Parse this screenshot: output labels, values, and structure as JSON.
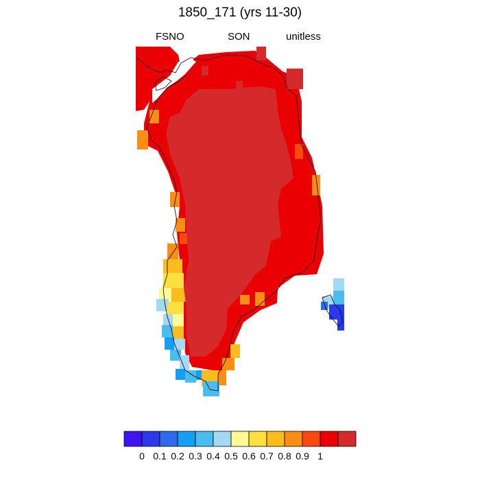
{
  "header": {
    "title": "1850_171 (yrs 11-30)",
    "variable": "FSNO",
    "season": "SON",
    "units": "unitless"
  },
  "colorbar": {
    "colors": [
      "#3e14f2",
      "#2a39e9",
      "#2e6bea",
      "#159ef5",
      "#4bbcef",
      "#a3d9f3",
      "#fefb96",
      "#fde040",
      "#fbbd1d",
      "#f98e14",
      "#f9490d",
      "#ea0003",
      "#d42a2b"
    ],
    "tick_labels": [
      "0",
      "0.1",
      "0.2",
      "0.3",
      "0.4",
      "0.5",
      "0.6",
      "0.7",
      "0.8",
      "0.9",
      "1"
    ]
  },
  "map": {
    "region_palette": {
      "deep_red": "#d42a2b",
      "red": "#ea0003",
      "orange_red": "#f9490d",
      "orange": "#f98e14",
      "gold": "#fbbd1d",
      "yellow": "#fde040",
      "pale_yellow": "#fefb96",
      "light_blue": "#a3d9f3",
      "sky_blue": "#4bbcef",
      "blue": "#159ef5",
      "mid_blue": "#2e6bea",
      "dark_blue": "#2a39e9",
      "violet": "#3e14f2",
      "coast": "#000000"
    }
  }
}
